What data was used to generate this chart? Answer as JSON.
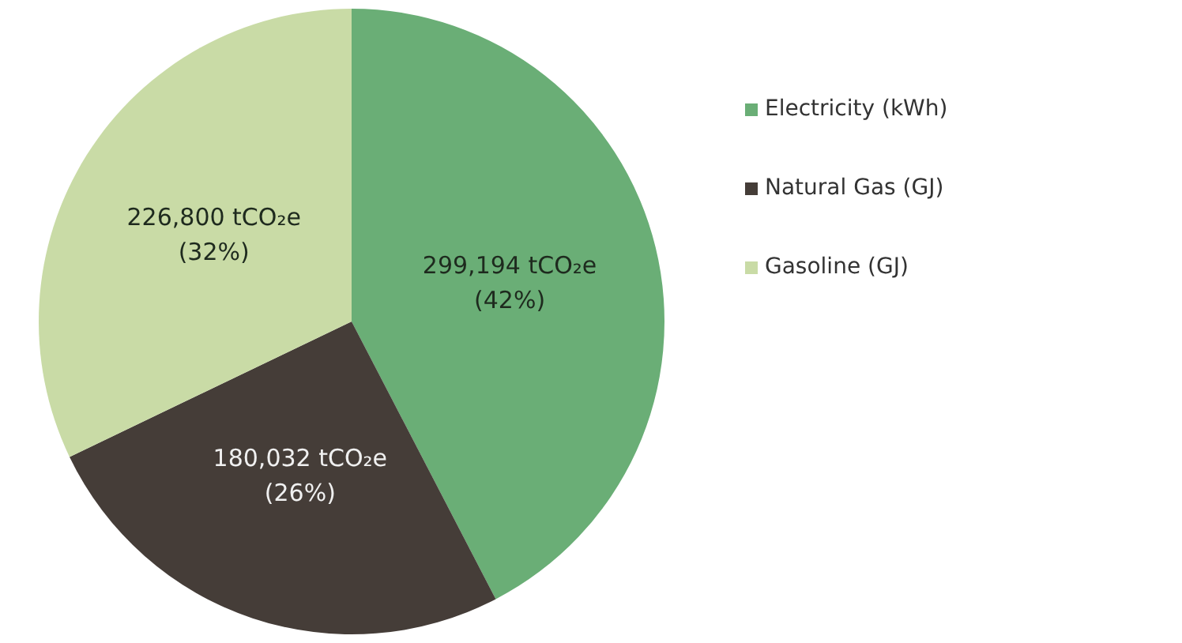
{
  "chart_data": {
    "type": "pie",
    "categories": [
      "Electricity (kWh)",
      "Natural Gas (GJ)",
      "Gasoline (GJ)"
    ],
    "values": [
      299194,
      180032,
      226800
    ],
    "colors": [
      "#6aae76",
      "#453d38",
      "#c9dba6"
    ],
    "value_labels": [
      "299,194 tCO₂e\n(42%)",
      "180,032 tCO₂e\n(26%)",
      "226,800 tCO₂e\n(32%)"
    ],
    "legend": "right"
  }
}
